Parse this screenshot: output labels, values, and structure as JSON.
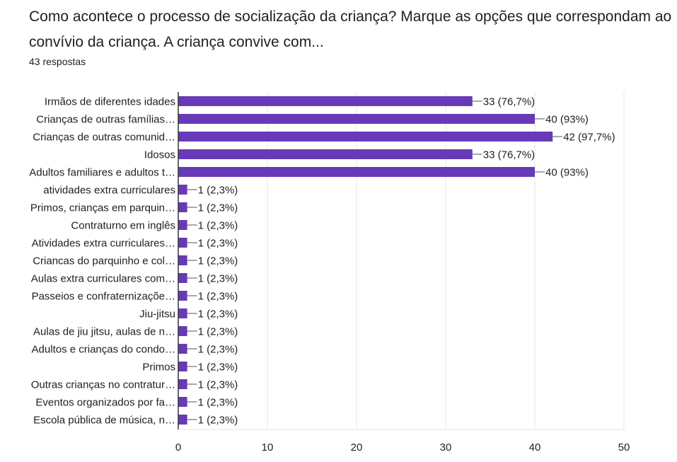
{
  "question": {
    "line1": "Como acontece o processo de socialização da criança? Marque as opções que correspondam ao",
    "line2": "convívio da criança.   A criança convive com..."
  },
  "responses_label": "43 respostas",
  "colors": {
    "bar": "#673ab7",
    "grid": "#e6e6e6",
    "axis": "#333333",
    "text": "#202124"
  },
  "chart_data": {
    "type": "bar",
    "orientation": "horizontal",
    "title": "",
    "xlabel": "",
    "ylabel": "",
    "xlim": [
      0,
      50
    ],
    "xticks": [
      0,
      10,
      20,
      30,
      40,
      50
    ],
    "grid": true,
    "categories": [
      "Irmãos de diferentes idades",
      "Crianças de outras famílias…",
      "Crianças de outras comunid…",
      "Idosos",
      "Adultos familiares e adultos t…",
      "atividades extra curriculares",
      "Primos, crianças em parquin…",
      "Contraturno em inglês",
      "Atividades extra curriculares…",
      "Criancas do parquinho e col…",
      "Aulas extra curriculares com…",
      "Passeios e confraternizaçõe…",
      "Jiu-jitsu",
      "Aulas de jiu jitsu, aulas de n…",
      "Adultos e crianças do condo…",
      "Primos",
      "Outras crianças no contratur…",
      "Eventos organizados por fa…",
      "Escola pública de música, n…"
    ],
    "values": [
      33,
      40,
      42,
      33,
      40,
      1,
      1,
      1,
      1,
      1,
      1,
      1,
      1,
      1,
      1,
      1,
      1,
      1,
      1
    ],
    "value_labels": [
      "33 (76,7%)",
      "40 (93%)",
      "42 (97,7%)",
      "33 (76,7%)",
      "40 (93%)",
      "1 (2,3%)",
      "1 (2,3%)",
      "1 (2,3%)",
      "1 (2,3%)",
      "1 (2,3%)",
      "1 (2,3%)",
      "1 (2,3%)",
      "1 (2,3%)",
      "1 (2,3%)",
      "1 (2,3%)",
      "1 (2,3%)",
      "1 (2,3%)",
      "1 (2,3%)",
      "1 (2,3%)"
    ]
  }
}
